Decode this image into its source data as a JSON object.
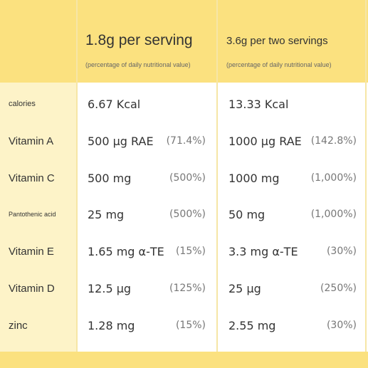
{
  "header": {
    "col1_title": "1.8g per serving",
    "col1_sub": "(percentage of daily nutritional value)",
    "col2_title": "3.6g per two servings",
    "col2_sub": "(percentage of daily nutritional value)"
  },
  "rows": [
    {
      "label": "calories",
      "v1": "6.67 Kcal",
      "v2": "13.33 Kcal"
    },
    {
      "label": "Vitamin A",
      "v1": "500 μg RAE",
      "p1": "(71.4%)",
      "v2": "1000 μg RAE",
      "p2": "(142.8%)"
    },
    {
      "label": "Vitamin C",
      "v1": "500 mg",
      "p1": "(500%)",
      "v2": "1000 mg",
      "p2": "(1,000%)"
    },
    {
      "label": "Pantothenic acid",
      "v1": "25 mg",
      "p1": "(500%)",
      "v2": "50 mg",
      "p2": "(1,000%)"
    },
    {
      "label": "Vitamin E",
      "v1": "1.65 mg α-TE",
      "p1": "(15%)",
      "v2": "3.3 mg α-TE",
      "p2": "(30%)"
    },
    {
      "label": "Vitamin D",
      "v1": "12.5 μg",
      "p1": "(125%)",
      "v2": "25 μg",
      "p2": "(250%)"
    },
    {
      "label": "zinc",
      "v1": "1.28 mg",
      "p1": "(15%)",
      "v2": "2.55 mg",
      "p2": "(30%)"
    }
  ]
}
